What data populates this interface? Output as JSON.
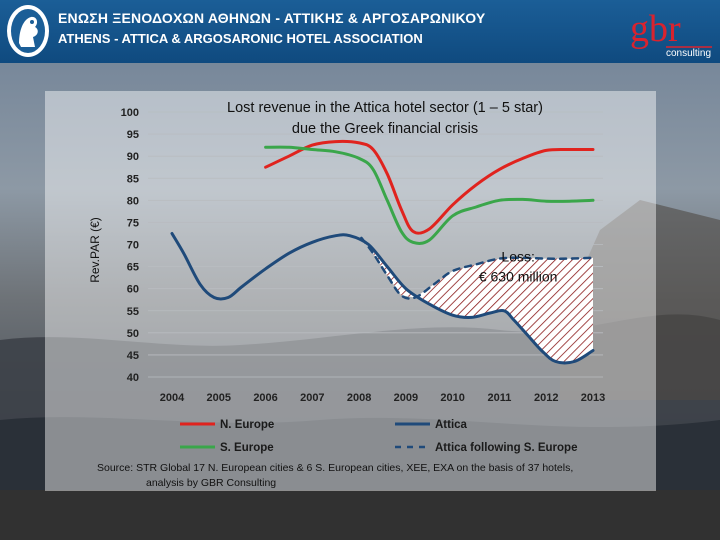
{
  "header": {
    "association_greek": "ΕΝΩΣΗ ΞΕΝΟΔΟΧΩΝ ΑΘΗΝΩΝ - ΑΤΤΙΚΗΣ & ΑΡΓΟΣΑΡΩΝΙΚΟΥ",
    "association_english": "ATHENS - ATTICA & ARGOSARONIC HOTEL ASSOCIATION",
    "consultant_logo_text": "gbr",
    "consultant_logo_sub": "consulting"
  },
  "source_text": {
    "line1": "Source: STR Global 17 N. European cities & 6 S. European cities, XEE, EXA on the basis of 37 hotels,",
    "line2": "analysis by GBR Consulting"
  },
  "chart_data": {
    "type": "line",
    "title": "Lost revenue in the Attica hotel sector (1 – 5 star)",
    "subtitle": "due the Greek financial crisis",
    "ylabel": "Rev.PAR (€)",
    "xlabel": "",
    "x_ticks": [
      "2004",
      "2005",
      "2006",
      "2007",
      "2008",
      "2009",
      "2010",
      "2011",
      "2012",
      "2013"
    ],
    "y_ticks": [
      "100",
      "95",
      "90",
      "85",
      "80",
      "75",
      "70",
      "65",
      "60",
      "55",
      "50",
      "45",
      "40"
    ],
    "ylim": [
      40,
      100
    ],
    "xlim": [
      2004,
      2013
    ],
    "annotation": {
      "line1": "Loss:",
      "line2": "€ 630 million",
      "x": 2011.4,
      "y": 63
    },
    "series": [
      {
        "name": "N. Europe",
        "color": "#e0231e",
        "style": "solid",
        "points": [
          [
            2006,
            87.5
          ],
          [
            2006.5,
            90
          ],
          [
            2007,
            92.5
          ],
          [
            2007.5,
            93.3
          ],
          [
            2008,
            93
          ],
          [
            2008.3,
            91.5
          ],
          [
            2008.6,
            86
          ],
          [
            2008.9,
            78
          ],
          [
            2009.15,
            73
          ],
          [
            2009.5,
            73.5
          ],
          [
            2010,
            79
          ],
          [
            2010.5,
            83.5
          ],
          [
            2011,
            87
          ],
          [
            2011.5,
            89.5
          ],
          [
            2012,
            91.3
          ],
          [
            2012.5,
            91.5
          ],
          [
            2013,
            91.5
          ]
        ]
      },
      {
        "name": "S. Europe",
        "color": "#3aa64a",
        "style": "solid",
        "points": [
          [
            2006,
            92
          ],
          [
            2006.5,
            92
          ],
          [
            2007,
            91.5
          ],
          [
            2007.5,
            91
          ],
          [
            2008,
            89.5
          ],
          [
            2008.3,
            87
          ],
          [
            2008.6,
            80
          ],
          [
            2008.9,
            73
          ],
          [
            2009.15,
            70.5
          ],
          [
            2009.5,
            71
          ],
          [
            2010,
            76.5
          ],
          [
            2010.5,
            78.5
          ],
          [
            2011,
            80
          ],
          [
            2011.5,
            80.2
          ],
          [
            2012,
            79.8
          ],
          [
            2012.5,
            79.8
          ],
          [
            2013,
            80
          ]
        ]
      },
      {
        "name": "Attica",
        "color": "#1f4a7a",
        "style": "solid",
        "points": [
          [
            2004,
            72.5
          ],
          [
            2004.25,
            68
          ],
          [
            2004.6,
            61
          ],
          [
            2004.9,
            58
          ],
          [
            2005.2,
            58
          ],
          [
            2005.5,
            60.5
          ],
          [
            2006,
            64.5
          ],
          [
            2006.5,
            68
          ],
          [
            2007,
            70.5
          ],
          [
            2007.5,
            72
          ],
          [
            2007.8,
            72
          ],
          [
            2008.2,
            70
          ],
          [
            2008.6,
            65
          ],
          [
            2009,
            60
          ],
          [
            2009.5,
            56.5
          ],
          [
            2010,
            54
          ],
          [
            2010.4,
            53.5
          ],
          [
            2010.8,
            54.5
          ],
          [
            2011.1,
            55
          ],
          [
            2011.3,
            53
          ],
          [
            2011.6,
            49.5
          ],
          [
            2011.9,
            46
          ],
          [
            2012.2,
            43.5
          ],
          [
            2012.6,
            43.5
          ],
          [
            2013,
            46
          ]
        ]
      },
      {
        "name": "Attica following S. Europe",
        "color": "#1f4a7a",
        "style": "dashed",
        "points": [
          [
            2008.05,
            71.5
          ],
          [
            2008.3,
            68
          ],
          [
            2008.6,
            63
          ],
          [
            2008.9,
            58.5
          ],
          [
            2009.2,
            58
          ],
          [
            2009.6,
            61
          ],
          [
            2010,
            64
          ],
          [
            2010.5,
            65.5
          ],
          [
            2011,
            66.8
          ],
          [
            2011.5,
            67
          ],
          [
            2012,
            66.8
          ],
          [
            2012.5,
            66.8
          ],
          [
            2013,
            67
          ]
        ]
      }
    ],
    "legend": {
      "position": "bottom",
      "entries": [
        "N. Europe",
        "Attica",
        "S. Europe",
        "Attica following S. Europe"
      ]
    }
  }
}
